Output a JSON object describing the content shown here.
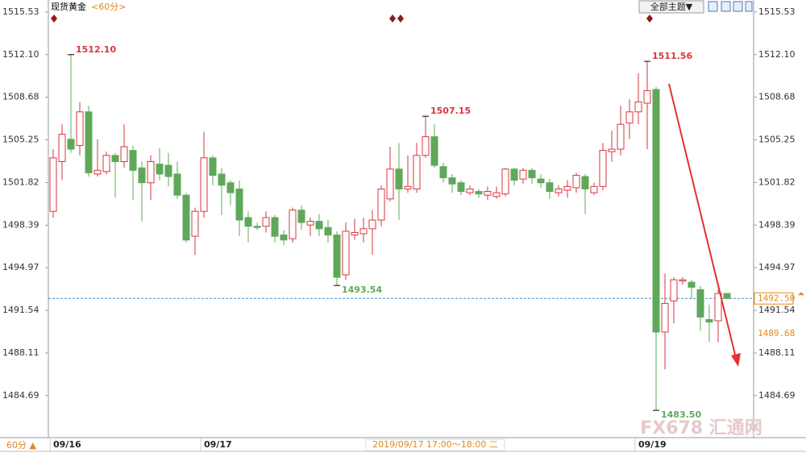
{
  "chart_data": {
    "type": "candlestick",
    "title": "现货黄金",
    "subtitle": "<60分>",
    "categories": [
      "09/16",
      null,
      null,
      null,
      null,
      null,
      null,
      null,
      null,
      null,
      null,
      null,
      null,
      null,
      null,
      null,
      null,
      "09/17",
      null,
      null,
      null,
      null,
      null,
      null,
      null,
      null,
      null,
      null,
      null,
      null,
      null,
      null,
      null,
      null,
      null,
      null,
      null,
      null,
      null,
      null,
      null,
      null,
      null,
      null,
      null,
      null,
      null,
      null,
      null,
      null,
      null,
      null,
      null,
      null,
      null,
      null,
      null,
      null,
      null,
      null,
      null,
      null,
      null,
      null,
      null,
      null,
      "09/19",
      null,
      null,
      null,
      null,
      null,
      null,
      null,
      null,
      null,
      null
    ],
    "open": [
      1499.5,
      1503.5,
      1505.3,
      1504.8,
      1507.5,
      1502.5,
      1502.7,
      1504.0,
      1503.5,
      1504.4,
      1503.0,
      1501.8,
      1503.3,
      1503.2,
      1502.5,
      1500.8,
      1497.5,
      1499.5,
      1503.8,
      1502.5,
      1501.8,
      1501.3,
      1499.0,
      1498.3,
      1498.3,
      1499.0,
      1497.6,
      1497.3,
      1499.6,
      1498.4,
      1498.7,
      1498.2,
      1497.6,
      1494.4,
      1497.6,
      1497.7,
      1498.1,
      1498.8,
      1500.5,
      1502.9,
      1501.3,
      1501.3,
      1504.0,
      1505.5,
      1503.1,
      1502.2,
      1501.8,
      1501.0,
      1501.1,
      1500.8,
      1500.7,
      1500.9,
      1502.9,
      1502.1,
      1502.8,
      1502.1,
      1501.8,
      1501.0,
      1501.2,
      1501.4,
      1502.3,
      1501.0,
      1501.5,
      1504.3,
      1504.5,
      1506.6,
      1507.5,
      1508.2,
      1509.3,
      1489.8,
      1492.3,
      1493.9,
      1493.8,
      1493.2,
      1490.8,
      1490.7,
      1492.9
    ],
    "high": [
      1504.5,
      1506.5,
      1512.1,
      1508.3,
      1508.0,
      1505.3,
      1504.3,
      1504.2,
      1506.5,
      1504.8,
      1503.5,
      1504.0,
      1504.6,
      1504.2,
      1503.5,
      1501.0,
      1499.8,
      1505.9,
      1504.0,
      1503.0,
      1502.0,
      1502.0,
      1499.5,
      1498.6,
      1499.5,
      1499.2,
      1498.0,
      1499.8,
      1500.0,
      1499.0,
      1499.3,
      1498.8,
      1497.9,
      1498.6,
      1498.9,
      1499.0,
      1499.6,
      1501.6,
      1504.7,
      1505.0,
      1504.0,
      1505.0,
      1507.15,
      1506.5,
      1503.4,
      1502.5,
      1502.0,
      1501.6,
      1501.3,
      1501.5,
      1501.5,
      1503.0,
      1503.0,
      1503.0,
      1503.0,
      1502.5,
      1502.1,
      1501.6,
      1502.0,
      1502.6,
      1502.5,
      1501.8,
      1505.0,
      1506.0,
      1508.0,
      1508.5,
      1510.6,
      1511.56,
      1509.5,
      1494.5,
      1494.2,
      1494.2,
      1494.0,
      1493.5,
      1492.0,
      1493.2,
      1492.9
    ],
    "low": [
      1499.0,
      1502.0,
      1504.2,
      1504.0,
      1502.3,
      1502.3,
      1502.5,
      1500.6,
      1503.0,
      1500.4,
      1498.7,
      1500.4,
      1502.0,
      1501.5,
      1500.5,
      1497.0,
      1496.0,
      1499.0,
      1501.6,
      1499.2,
      1500.0,
      1497.5,
      1497.0,
      1498.0,
      1497.8,
      1497.0,
      1496.8,
      1497.0,
      1498.0,
      1497.5,
      1497.5,
      1497.0,
      1493.54,
      1494.0,
      1497.2,
      1497.0,
      1496.0,
      1498.3,
      1500.3,
      1498.8,
      1501.0,
      1501.0,
      1503.8,
      1503.0,
      1501.8,
      1501.0,
      1500.8,
      1500.8,
      1500.6,
      1500.4,
      1500.5,
      1500.7,
      1501.6,
      1501.7,
      1501.7,
      1501.4,
      1500.5,
      1500.7,
      1500.6,
      1501.0,
      1499.3,
      1500.8,
      1501.2,
      1503.5,
      1504.0,
      1505.3,
      1506.5,
      1504.5,
      1483.5,
      1486.8,
      1490.5,
      1493.6,
      1492.5,
      1489.9,
      1489.0,
      1489.0,
      1492.5
    ],
    "close": [
      1503.8,
      1505.7,
      1504.5,
      1507.5,
      1502.6,
      1502.8,
      1504.0,
      1503.5,
      1504.7,
      1502.8,
      1501.8,
      1503.5,
      1502.5,
      1502.3,
      1500.8,
      1497.2,
      1499.5,
      1503.8,
      1502.4,
      1501.6,
      1501.0,
      1498.8,
      1498.3,
      1498.2,
      1499.0,
      1497.5,
      1497.2,
      1499.6,
      1498.6,
      1498.7,
      1498.1,
      1497.6,
      1494.2,
      1497.9,
      1497.8,
      1498.1,
      1498.8,
      1501.3,
      1502.9,
      1501.3,
      1501.5,
      1504.0,
      1505.5,
      1503.2,
      1502.2,
      1501.7,
      1501.1,
      1501.3,
      1500.9,
      1501.1,
      1501.0,
      1502.9,
      1502.0,
      1502.8,
      1502.2,
      1501.8,
      1501.1,
      1501.3,
      1501.5,
      1502.4,
      1501.3,
      1501.5,
      1504.4,
      1504.5,
      1506.5,
      1507.5,
      1508.3,
      1509.2,
      1489.8,
      1492.1,
      1494.0,
      1494.0,
      1493.4,
      1491.0,
      1490.6,
      1492.9,
      1492.5
    ],
    "up_color": "#d9363e",
    "down_color": "#5fa85a",
    "ylim": [
      1481.5,
      1516.17
    ],
    "yticks": [
      1515.53,
      {
        "value": 1512.1,
        "label": "1512.10"
      },
      1508.68,
      1505.25,
      1501.82,
      1498.39,
      1494.97,
      1491.54,
      1488.11,
      1484.69
    ],
    "annotations": [
      {
        "value": 1512.1,
        "label": "1512.10"
      },
      {
        "value": 1493.54,
        "label": "1493.54"
      },
      {
        "value": 1507.15,
        "label": "1507.15"
      },
      {
        "value": 1511.56,
        "label": "1511.56"
      },
      {
        "value": 1483.5,
        "label": "1483.50"
      }
    ],
    "price_labels": [
      {
        "value": 1492.5,
        "label": "1492.50"
      },
      {
        "value": 1489.68,
        "label": "1489.68"
      }
    ],
    "period": "60分 ▲",
    "tooltip": "2019/09/17 17:00～18:00 二"
  },
  "toolbar": {
    "theme": "全部主题▼"
  },
  "watermark": "FX678 汇通网"
}
